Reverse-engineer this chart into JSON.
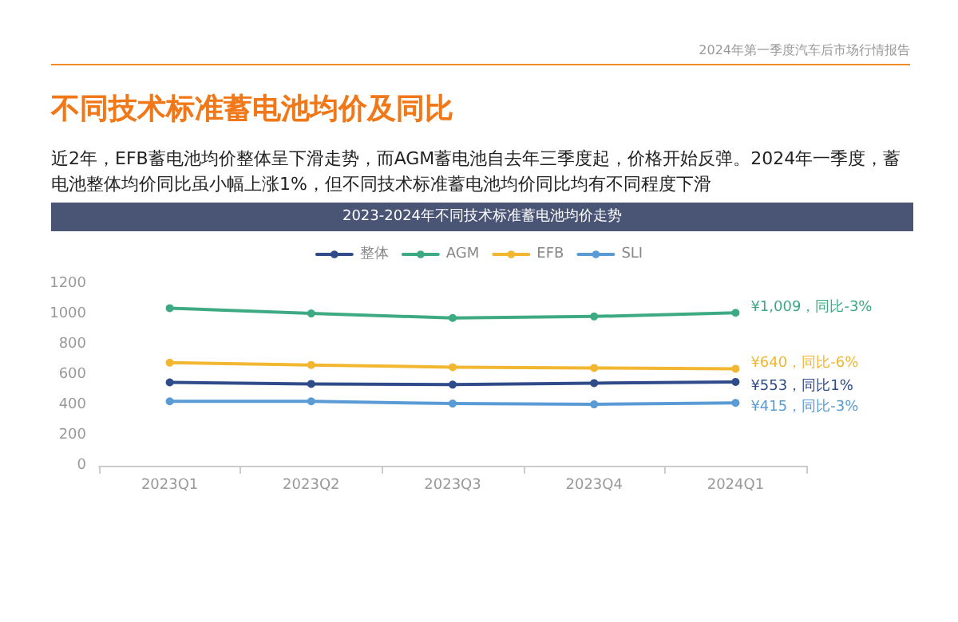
{
  "chart_data": {
    "type": "line",
    "title": "不同技术标准蓄电池均价及同比",
    "subtitle": "近2年，EFB蓄电池均价整体呈下滑走势，而AGM蓄电池自去年三季度起，价格开始反弹。2024年一季度，蓄电池整体均价同比虽小幅上涨1%，但不同技术标准蓄电池均价同比均有不同程度下滑",
    "annotations": [
      "2024年第一季度汽车后市场行情报告",
      "2023-2024年不同技术标准蓄电池均价走势"
    ],
    "categories": [
      "2023Q1",
      "2023Q2",
      "2023Q3",
      "2023Q4",
      "2024Q1"
    ],
    "series": [
      {
        "name": "整体",
        "color": "#2f4b8a",
        "values": [
          550,
          540,
          535,
          545,
          553
        ],
        "value_labels": [
          null,
          null,
          null,
          null,
          "¥553，同比1%"
        ]
      },
      {
        "name": "AGM",
        "color": "#3daa83",
        "values": [
          1040,
          1005,
          975,
          985,
          1009
        ],
        "value_labels": [
          null,
          null,
          null,
          null,
          "¥1,009，同比-3%"
        ]
      },
      {
        "name": "EFB",
        "color": "#f2b630",
        "values": [
          680,
          665,
          650,
          645,
          640
        ],
        "value_labels": [
          null,
          null,
          null,
          null,
          "¥640，同比-6%"
        ]
      },
      {
        "name": "SLI",
        "color": "#5b9bd5",
        "values": [
          425,
          425,
          410,
          405,
          415
        ],
        "value_labels": [
          null,
          null,
          null,
          null,
          "¥415，同比-3%"
        ]
      }
    ],
    "ylim": [
      0,
      1200
    ],
    "yticks": [
      0,
      200,
      400,
      600,
      800,
      1000,
      1200
    ],
    "grid": false,
    "legend": "top",
    "marker": "circle",
    "line_style": "solid"
  }
}
